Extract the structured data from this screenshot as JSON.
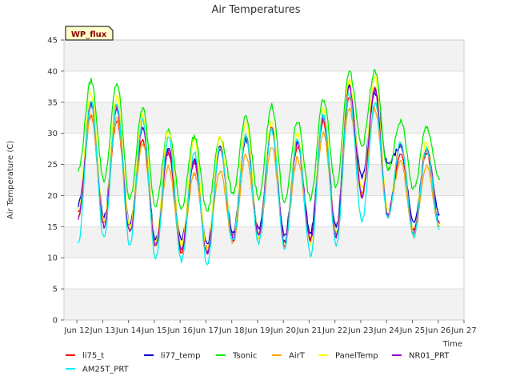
{
  "chart_data": {
    "type": "line",
    "title": "Air Temperatures",
    "xlabel": "Time",
    "ylabel": "Air Temperature (C)",
    "badge": "WP_flux",
    "xlim": [
      "Jun 12",
      "Jun 27"
    ],
    "ylim": [
      0,
      45
    ],
    "x_ticks": [
      "Jun 12",
      "Jun 13",
      "Jun 14",
      "Jun 15",
      "Jun 16",
      "Jun 17",
      "Jun 18",
      "Jun 19",
      "Jun 20",
      "Jun 21",
      "Jun 22",
      "Jun 23",
      "Jun 24",
      "Jun 25",
      "Jun 26",
      "Jun 27"
    ],
    "y_ticks": [
      0,
      5,
      10,
      15,
      20,
      25,
      30,
      35,
      40,
      45
    ],
    "grid": true,
    "legend_position": "bottom",
    "x_day_start": "Jun 12",
    "series_x_start": "Jun 12 00:00",
    "series_x_step_hours": 12,
    "series": [
      {
        "name": "li75_t",
        "color": "#ff0000",
        "values": [
          17.0,
          33.0,
          15.5,
          32.0,
          15.0,
          29.0,
          12.5,
          27.0,
          11.0,
          25.5,
          11.0,
          27.5,
          13.5,
          29.0,
          14.0,
          31.0,
          12.0,
          28.0,
          13.0,
          32.0,
          14.0,
          36.0,
          20.0,
          37.0,
          17.0,
          27.0,
          14.5,
          27.0,
          15.0
        ]
      },
      {
        "name": "li77_temp",
        "color": "#0000cc",
        "values": [
          18.5,
          35.0,
          16.5,
          34.5,
          15.5,
          31.0,
          13.0,
          27.5,
          13.0,
          26.0,
          12.0,
          28.0,
          14.0,
          29.0,
          14.5,
          30.5,
          13.5,
          28.5,
          14.0,
          33.0,
          15.0,
          37.5,
          23.0,
          36.5,
          25.0,
          28.0,
          15.5,
          27.5,
          17.0
        ]
      },
      {
        "name": "Tsonic",
        "color": "#00ee00",
        "values": [
          24.0,
          38.5,
          22.5,
          38.0,
          19.5,
          34.0,
          18.5,
          30.5,
          18.0,
          29.5,
          17.5,
          29.5,
          20.5,
          32.5,
          19.5,
          34.5,
          19.0,
          32.0,
          19.5,
          35.5,
          21.5,
          40.0,
          28.0,
          40.0,
          24.0,
          32.0,
          21.0,
          31.0,
          22.5
        ]
      },
      {
        "name": "AirT",
        "color": "#ffa500",
        "values": [
          16.5,
          33.0,
          15.5,
          32.5,
          14.5,
          28.5,
          12.0,
          24.5,
          11.5,
          23.5,
          11.5,
          24.0,
          12.5,
          26.5,
          13.0,
          28.0,
          12.5,
          26.0,
          13.0,
          30.0,
          13.5,
          34.0,
          20.5,
          34.0,
          17.0,
          25.5,
          13.5,
          24.5,
          15.0
        ]
      },
      {
        "name": "PanelTemp",
        "color": "#ffff00",
        "values": [
          17.5,
          36.5,
          16.0,
          36.0,
          15.0,
          33.0,
          12.5,
          30.5,
          12.0,
          29.0,
          11.0,
          29.5,
          13.0,
          31.5,
          13.5,
          32.0,
          12.5,
          30.0,
          12.5,
          34.0,
          14.0,
          38.5,
          21.0,
          39.0,
          17.5,
          28.5,
          14.0,
          28.5,
          15.5
        ]
      },
      {
        "name": "NR01_PRT",
        "color": "#9900cc",
        "values": [
          16.5,
          34.5,
          15.0,
          34.0,
          14.0,
          31.0,
          12.0,
          27.5,
          11.5,
          25.5,
          10.5,
          27.5,
          13.0,
          29.5,
          13.5,
          30.5,
          12.5,
          28.5,
          13.0,
          32.5,
          13.5,
          37.5,
          20.0,
          37.0,
          17.0,
          28.0,
          14.0,
          27.5,
          15.5
        ]
      },
      {
        "name": "AM25T_PRT",
        "color": "#00eeee",
        "values": [
          12.5,
          35.0,
          13.0,
          34.5,
          12.0,
          32.0,
          10.0,
          29.5,
          9.5,
          27.0,
          9.0,
          28.0,
          12.5,
          29.5,
          12.5,
          30.5,
          11.5,
          29.0,
          10.5,
          33.0,
          12.0,
          36.5,
          16.0,
          35.0,
          16.5,
          28.5,
          13.5,
          27.5,
          14.5
        ]
      }
    ]
  }
}
